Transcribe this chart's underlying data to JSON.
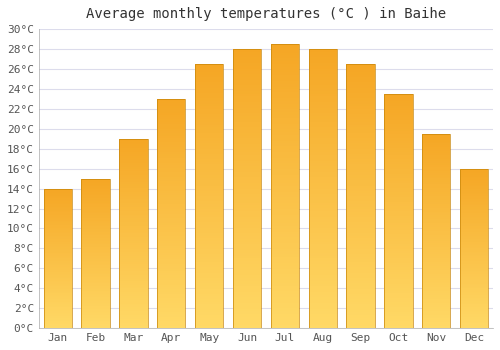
{
  "title": "Average monthly temperatures (°C ) in Baihe",
  "months": [
    "Jan",
    "Feb",
    "Mar",
    "Apr",
    "May",
    "Jun",
    "Jul",
    "Aug",
    "Sep",
    "Oct",
    "Nov",
    "Dec"
  ],
  "values": [
    14,
    15,
    19,
    23,
    26.5,
    28,
    28.5,
    28,
    26.5,
    23.5,
    19.5,
    16
  ],
  "bar_color_bottom": "#FFD966",
  "bar_color_top": "#F5A623",
  "bar_edge_color": "#C8860A",
  "background_color": "#FFFFFF",
  "plot_bg_color": "#FFFFFF",
  "grid_color": "#DCDCEC",
  "title_fontsize": 10,
  "tick_fontsize": 8,
  "ylim_min": 0,
  "ylim_max": 30,
  "ytick_step": 2,
  "bar_width": 0.75
}
